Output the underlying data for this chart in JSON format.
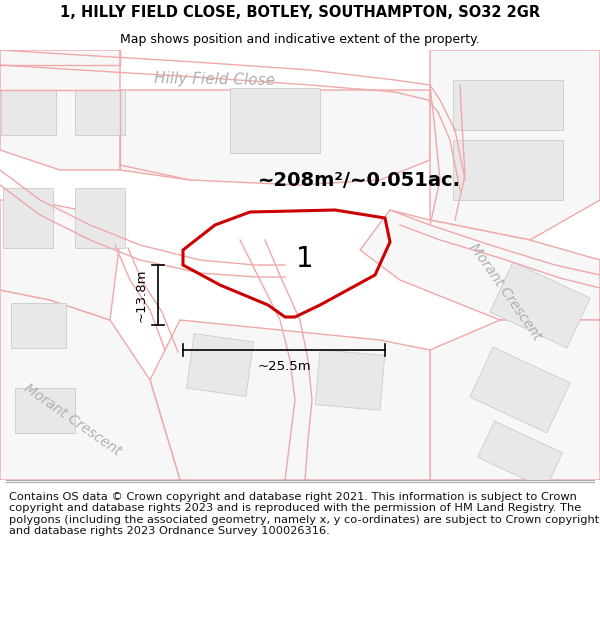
{
  "title_line1": "1, HILLY FIELD CLOSE, BOTLEY, SOUTHAMPTON, SO32 2GR",
  "title_line2": "Map shows position and indicative extent of the property.",
  "footer_text": "Contains OS data © Crown copyright and database right 2021. This information is subject to Crown copyright and database rights 2023 and is reproduced with the permission of HM Land Registry. The polygons (including the associated geometry, namely x, y co-ordinates) are subject to Crown copyright and database rights 2023 Ordnance Survey 100026316.",
  "area_text": "~208m²/~0.051ac.",
  "plot_number": "1",
  "dim_width": "~25.5m",
  "dim_height": "~13.8m",
  "road_label_hfc": "Hilly Field Close",
  "road_label_mc_left": "Morant Crescent",
  "road_label_mc_right": "Morant Crescent",
  "bg_color": "#ffffff",
  "plot_edge": "#cc0000",
  "building_fill": "#e8e8e8",
  "building_edge": "#cccccc",
  "road_line_color": "#f0a8a8",
  "road_outline_color": "#f5c8c8",
  "parcel_edge": "#f0a8a8",
  "title_fontsize": 10.5,
  "footer_fontsize": 8.2,
  "road_label_color": "#b0b0b0"
}
